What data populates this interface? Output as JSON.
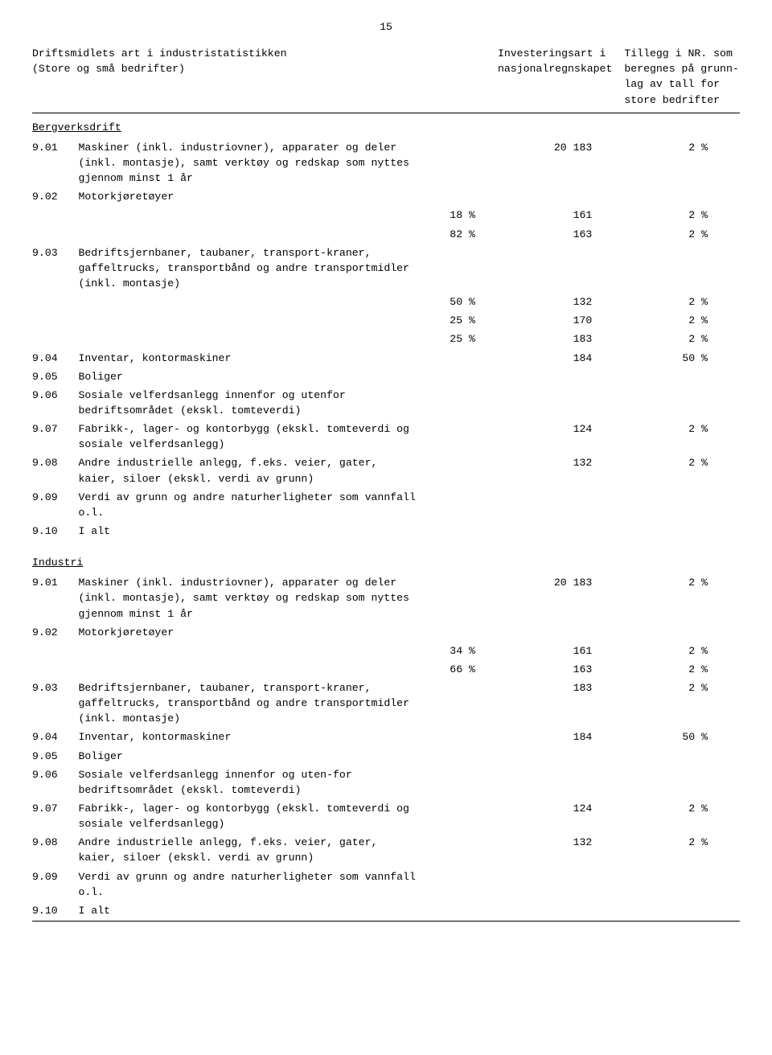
{
  "page_number": "15",
  "header": {
    "col1_line1": "Driftsmidlets art i industristatistikken",
    "col1_line2": "(Store og små bedrifter)",
    "col2_line1": "Investeringsart i",
    "col2_line2": "nasjonalregnskapet",
    "col3_line1": "Tillegg i NR. som",
    "col3_line2": "beregnes på grunn-",
    "col3_line3": "lag av tall for",
    "col3_line4": "store bedrifter"
  },
  "sections": [
    {
      "title": "Bergverksdrift",
      "rows": [
        {
          "code": "9.01",
          "desc": "Maskiner (inkl. industriovner), apparater og deler (inkl. montasje), samt verktøy og redskap som nyttes gjennom minst 1 år",
          "pct": "",
          "inv": "20 183",
          "til": "2 %"
        },
        {
          "code": "9.02",
          "desc": "Motorkjøretøyer",
          "pct": "",
          "inv": "",
          "til": ""
        },
        {
          "code": "",
          "desc": "",
          "pct": "18 %",
          "inv": "161",
          "til": "2 %"
        },
        {
          "code": "",
          "desc": "",
          "pct": "82 %",
          "inv": "163",
          "til": "2 %"
        },
        {
          "code": "9.03",
          "desc": "Bedriftsjernbaner, taubaner, transport-kraner, gaffeltrucks, transportbånd og andre transportmidler (inkl. montasje)",
          "pct": "",
          "inv": "",
          "til": ""
        },
        {
          "code": "",
          "desc": "",
          "pct": "50 %",
          "inv": "132",
          "til": "2 %"
        },
        {
          "code": "",
          "desc": "",
          "pct": "25 %",
          "inv": "170",
          "til": "2 %"
        },
        {
          "code": "",
          "desc": "",
          "pct": "25 %",
          "inv": "183",
          "til": "2 %"
        },
        {
          "code": "9.04",
          "desc": "Inventar, kontormaskiner",
          "pct": "",
          "inv": "184",
          "til": "50 %"
        },
        {
          "code": "9.05",
          "desc": "Boliger",
          "pct": "",
          "inv": "",
          "til": ""
        },
        {
          "code": "9.06",
          "desc": "Sosiale velferdsanlegg innenfor og utenfor bedriftsområdet (ekskl. tomteverdi)",
          "pct": "",
          "inv": "",
          "til": ""
        },
        {
          "code": "9.07",
          "desc": "Fabrikk-, lager- og kontorbygg (ekskl. tomteverdi og sosiale velferdsanlegg)",
          "pct": "",
          "inv": "124",
          "til": "2 %"
        },
        {
          "code": "9.08",
          "desc": "Andre industrielle anlegg, f.eks. veier, gater, kaier, siloer (ekskl. verdi av grunn)",
          "pct": "",
          "inv": "132",
          "til": "2 %"
        },
        {
          "code": "9.09",
          "desc": "Verdi av grunn og andre naturherligheter som vannfall o.l.",
          "pct": "",
          "inv": "",
          "til": ""
        },
        {
          "code": "9.10",
          "desc": "I alt",
          "pct": "",
          "inv": "",
          "til": ""
        }
      ]
    },
    {
      "title": "Industri",
      "rows": [
        {
          "code": "9.01",
          "desc": "Maskiner (inkl. industriovner), apparater og deler (inkl. montasje), samt verktøy og redskap som nyttes gjennom minst 1 år",
          "pct": "",
          "inv": "20 183",
          "til": "2 %"
        },
        {
          "code": "9.02",
          "desc": "Motorkjøretøyer",
          "pct": "",
          "inv": "",
          "til": ""
        },
        {
          "code": "",
          "desc": "",
          "pct": "34 %",
          "inv": "161",
          "til": "2 %"
        },
        {
          "code": "",
          "desc": "",
          "pct": "66 %",
          "inv": "163",
          "til": "2 %"
        },
        {
          "code": "9.03",
          "desc": "Bedriftsjernbaner, taubaner, transport-kraner, gaffeltrucks, transportbånd og andre transportmidler (inkl. montasje)",
          "pct": "",
          "inv": "183",
          "til": "2 %"
        },
        {
          "code": "9.04",
          "desc": "Inventar, kontormaskiner",
          "pct": "",
          "inv": "184",
          "til": "50 %"
        },
        {
          "code": "9.05",
          "desc": "Boliger",
          "pct": "",
          "inv": "",
          "til": ""
        },
        {
          "code": "9.06",
          "desc": "Sosiale velferdsanlegg innenfor og uten-for bedriftsområdet (ekskl. tomteverdi)",
          "pct": "",
          "inv": "",
          "til": ""
        },
        {
          "code": "9.07",
          "desc": "Fabrikk-, lager- og kontorbygg (ekskl. tomteverdi og sosiale velferdsanlegg)",
          "pct": "",
          "inv": "124",
          "til": "2 %"
        },
        {
          "code": "9.08",
          "desc": "Andre industrielle anlegg, f.eks. veier, gater, kaier, siloer (ekskl. verdi av grunn)",
          "pct": "",
          "inv": "132",
          "til": "2 %"
        },
        {
          "code": "9.09",
          "desc": "Verdi av grunn og andre naturherligheter som vannfall o.l.",
          "pct": "",
          "inv": "",
          "til": ""
        },
        {
          "code": "9.10",
          "desc": "I alt",
          "pct": "",
          "inv": "",
          "til": ""
        }
      ]
    }
  ]
}
